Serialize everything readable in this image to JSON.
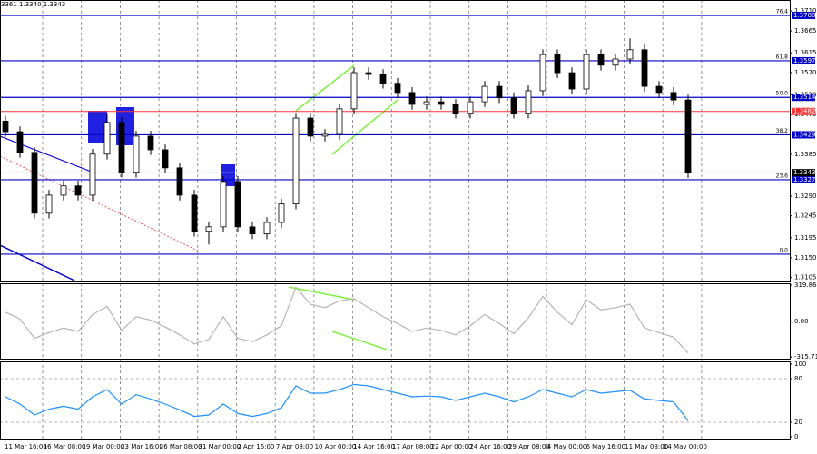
{
  "chart_data": [
    {
      "type": "candlestick",
      "title": "3361 1.3340 1.3343",
      "ylim": [
        1.3096,
        1.3735
      ],
      "yticks": [
        {
          "value": 1.371,
          "label": "1.3710"
        },
        1.3665,
        1.3615,
        {
          "value": 1.357,
          "label": "1.3570"
        },
        {
          "value": 1.352,
          "label": "1.3520"
        },
        1.3475,
        1.3385,
        {
          "value": 1.329,
          "label": "1.3290"
        },
        1.3245,
        1.3195,
        {
          "value": 1.315,
          "label": "1.3150"
        },
        1.3105
      ],
      "levels": [
        {
          "name": "76.4",
          "value": 1.37,
          "value_label": "1.3700"
        },
        {
          "name": "61.8",
          "value": 1.3597
        },
        {
          "name": "50.0",
          "value": 1.3514
        },
        {
          "name": "38.2",
          "value": 1.3429
        },
        {
          "name": "23.6",
          "value": 1.3327
        },
        {
          "name": "0.0",
          "value": 1.3158
        }
      ],
      "level_color": "#0000cc",
      "red_line": 1.3482,
      "red_color": "#ff3030",
      "current": 1.3343,
      "xlabels": [
        "11 Mar 16:00",
        "16 Mar 08:00",
        "19 Mar 00:00",
        "23 Mar 16:00",
        "26 Mar 08:00",
        "31 Mar 00:00",
        "2 Apr 16:00",
        "7 Apr 08:00",
        "10 Apr 00:00",
        "14 Apr 16:00",
        "17 Apr 08:00",
        "22 Apr 00:00",
        "24 Apr 16:00",
        "29 Apr 08:00",
        "4 May 00:00",
        "6 May 16:00",
        "11 May 08:00",
        "14 May 00:00"
      ],
      "open": [
        1.346,
        1.3436,
        1.3389,
        1.3251,
        1.3292,
        1.3313,
        1.3292,
        1.3385,
        1.3457,
        1.3344,
        1.3426,
        1.3395,
        1.3354,
        1.3292,
        1.321,
        1.322,
        1.3323,
        1.322,
        1.3204,
        1.323,
        1.3272,
        1.3467,
        1.3426,
        1.343,
        1.3488,
        1.357,
        1.3566,
        1.3546,
        1.3525,
        1.3498,
        1.3504,
        1.3498,
        1.3478,
        1.3504,
        1.3539,
        1.3513,
        1.3478,
        1.3529,
        1.3611,
        1.357,
        1.3533,
        1.3611,
        1.3587,
        1.3601,
        1.3622,
        1.3539,
        1.3525,
        1.3508
      ],
      "high": [
        1.3472,
        1.3448,
        1.3401,
        1.3304,
        1.3325,
        1.3325,
        1.3397,
        1.3478,
        1.3469,
        1.3438,
        1.3438,
        1.3407,
        1.3366,
        1.3304,
        1.3232,
        1.3335,
        1.3335,
        1.3232,
        1.3242,
        1.3284,
        1.3479,
        1.3479,
        1.3442,
        1.35,
        1.3582,
        1.3582,
        1.3578,
        1.3558,
        1.3537,
        1.3516,
        1.3516,
        1.351,
        1.3516,
        1.3551,
        1.3551,
        1.3525,
        1.3541,
        1.3623,
        1.3623,
        1.3582,
        1.3623,
        1.3623,
        1.3613,
        1.3648,
        1.3634,
        1.3551,
        1.3537,
        1.352
      ],
      "low": [
        1.3424,
        1.3377,
        1.3239,
        1.3239,
        1.328,
        1.328,
        1.328,
        1.3373,
        1.3332,
        1.3332,
        1.3383,
        1.3342,
        1.328,
        1.3198,
        1.318,
        1.3208,
        1.3208,
        1.3192,
        1.3192,
        1.3218,
        1.326,
        1.3414,
        1.3414,
        1.3418,
        1.3476,
        1.3554,
        1.3534,
        1.3513,
        1.3486,
        1.3486,
        1.3486,
        1.3466,
        1.3466,
        1.3492,
        1.3501,
        1.3466,
        1.3466,
        1.3517,
        1.3558,
        1.3521,
        1.3521,
        1.3575,
        1.3575,
        1.3589,
        1.3527,
        1.3513,
        1.3496,
        1.3331
      ],
      "close": [
        1.3436,
        1.3389,
        1.3251,
        1.3292,
        1.3313,
        1.3292,
        1.3385,
        1.3457,
        1.3344,
        1.3426,
        1.3395,
        1.3354,
        1.3292,
        1.321,
        1.322,
        1.3323,
        1.322,
        1.3204,
        1.323,
        1.3272,
        1.3467,
        1.3426,
        1.343,
        1.3488,
        1.357,
        1.3566,
        1.3546,
        1.3525,
        1.3498,
        1.3504,
        1.3498,
        1.3478,
        1.3504,
        1.3539,
        1.3513,
        1.3478,
        1.3529,
        1.3611,
        1.357,
        1.3533,
        1.3611,
        1.3587,
        1.3601,
        1.3622,
        1.3539,
        1.3525,
        1.3508,
        1.3343
      ]
    },
    {
      "type": "line",
      "color": "#b4b4b4",
      "ylim": [
        -330,
        335
      ],
      "yticks": [
        319.8648,
        {
          "value": 0,
          "label": "0.00"
        },
        -315.716
      ],
      "values": [
        80,
        20,
        -150,
        -100,
        -60,
        -90,
        60,
        130,
        -80,
        40,
        10,
        -50,
        -120,
        -200,
        -160,
        40,
        -150,
        -180,
        -120,
        -40,
        300,
        150,
        120,
        180,
        200,
        120,
        40,
        -20,
        -90,
        -60,
        -80,
        -120,
        -40,
        60,
        -20,
        -110,
        30,
        220,
        80,
        -30,
        190,
        100,
        120,
        150,
        -60,
        -100,
        -140,
        -280
      ]
    },
    {
      "type": "line",
      "color": "#1e90ff",
      "ylim": [
        0,
        100
      ],
      "yticks": [
        100,
        80,
        20,
        0
      ],
      "values": [
        55,
        45,
        30,
        38,
        42,
        38,
        55,
        65,
        45,
        58,
        52,
        45,
        37,
        28,
        30,
        45,
        32,
        28,
        32,
        40,
        70,
        60,
        60,
        65,
        72,
        70,
        65,
        60,
        55,
        56,
        55,
        50,
        55,
        60,
        55,
        48,
        55,
        65,
        60,
        55,
        65,
        60,
        62,
        64,
        52,
        50,
        48,
        22
      ]
    }
  ]
}
